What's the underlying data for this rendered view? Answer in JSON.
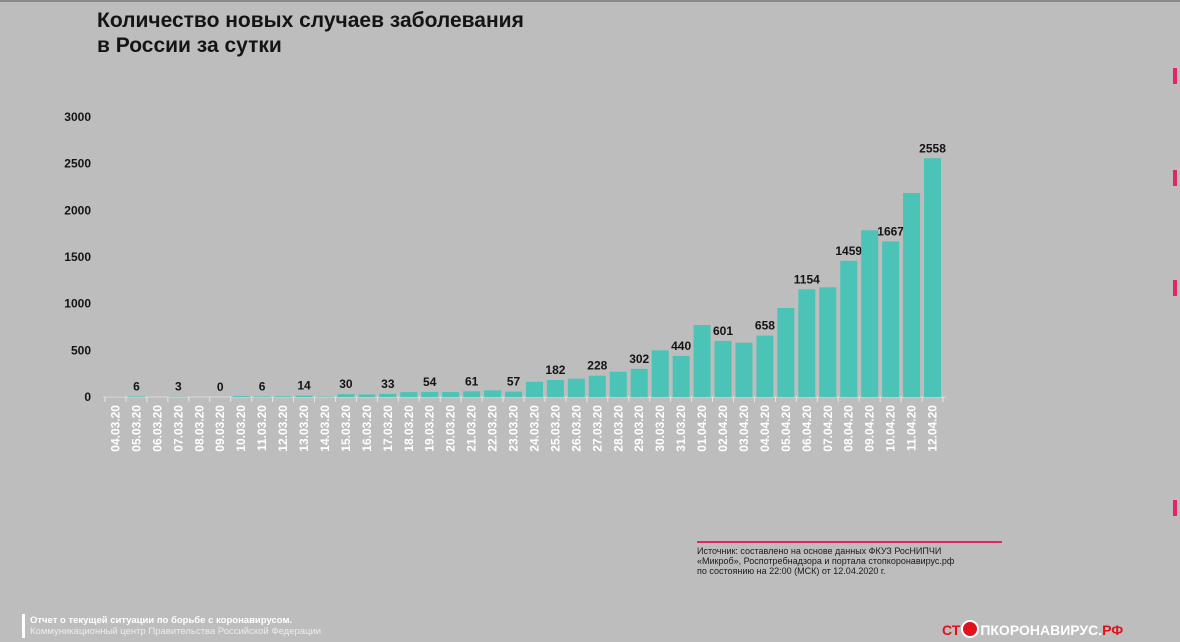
{
  "title_lines": [
    "Количество новых случаев заболевания",
    "в России за сутки"
  ],
  "source": {
    "lines": [
      "Источник: составлено на основе данных ФКУЗ РосНИПЧИ",
      "«Микроб», Роспотребнадзора и портала стопкоронавирус.рф",
      "по состоянию на 22:00 (МСК) от 12.04.2020 г."
    ]
  },
  "footer": {
    "line1": "Отчет о текущей ситуации по борьбе с коронавирусом.",
    "line2": "Коммуникационный центр Правительства Российской Федерации"
  },
  "logo": {
    "left": "СТ",
    "right": "ПКОРОНАВИРУС.",
    "suffix": "РФ",
    "icon": "virus-stop-icon"
  },
  "colors": {
    "bar": "#4cc3b7",
    "background": "#bdbdbd",
    "accent": "#e2246a",
    "logo_red": "#e1121b"
  },
  "chart_data": {
    "type": "bar",
    "title": "Количество новых случаев заболевания в России за сутки",
    "xlabel": "",
    "ylabel": "",
    "ylim": [
      0,
      3000
    ],
    "yticks": [
      0,
      500,
      1000,
      1500,
      2000,
      2500,
      3000
    ],
    "grid": false,
    "categories": [
      "04.03.20",
      "05.03.20",
      "06.03.20",
      "07.03.20",
      "08.03.20",
      "09.03.20",
      "10.03.20",
      "11.03.20",
      "12.03.20",
      "13.03.20",
      "14.03.20",
      "15.03.20",
      "16.03.20",
      "17.03.20",
      "18.03.20",
      "19.03.20",
      "20.03.20",
      "21.03.20",
      "22.03.20",
      "23.03.20",
      "24.03.20",
      "25.03.20",
      "26.03.20",
      "27.03.20",
      "28.03.20",
      "29.03.20",
      "30.03.20",
      "31.03.20",
      "01.04.20",
      "02.04.20",
      "03.04.20",
      "04.04.20",
      "05.04.20",
      "06.04.20",
      "07.04.20",
      "08.04.20",
      "09.04.20",
      "10.04.20",
      "11.04.20",
      "12.04.20"
    ],
    "values": [
      1,
      6,
      0,
      3,
      0,
      0,
      10,
      6,
      8,
      14,
      4,
      30,
      27,
      33,
      52,
      54,
      53,
      61,
      71,
      57,
      163,
      182,
      196,
      228,
      270,
      302,
      500,
      440,
      771,
      601,
      582,
      658,
      954,
      1154,
      1175,
      1459,
      1786,
      1667,
      2186,
      2558
    ],
    "labels": [
      "",
      "6",
      "",
      "3",
      "",
      "0",
      "",
      "6",
      "",
      "14",
      "",
      "30",
      "",
      "33",
      "",
      "54",
      "",
      "61",
      "",
      "57",
      "",
      "182",
      "",
      "228",
      "",
      "302",
      "",
      "440",
      "",
      "601",
      "",
      "658",
      "",
      "1154",
      "",
      "1459",
      "",
      "1667",
      "",
      "2558"
    ]
  }
}
